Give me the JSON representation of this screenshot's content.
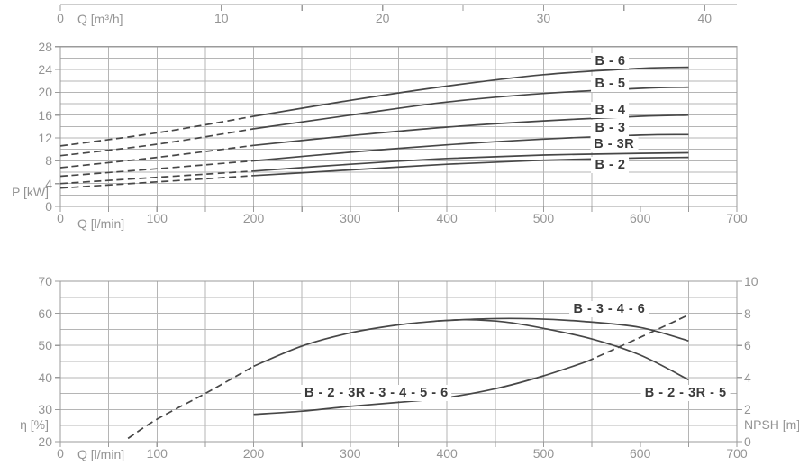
{
  "page": {
    "background": "#ffffff"
  },
  "colors": {
    "grid": "#b5b5b5",
    "border": "#9b9b9b",
    "axis": "#9b9b9b",
    "tick_label": "#949494",
    "curve": "#474747",
    "curve_label": "#3a3a3a"
  },
  "chart_data": [
    {
      "id": "power-chart",
      "type": "line",
      "x_axis_top": {
        "label": "Q [m³/h]",
        "labeled_ticks": [
          0,
          10,
          20,
          30,
          40
        ],
        "minor_step": 5,
        "liters_per_m3h": 16.6667
      },
      "xlabel": "Q [l/min]",
      "ylabel": "P [kW]",
      "xlim": [
        0,
        700
      ],
      "ylim": [
        0,
        28
      ],
      "x_tick_labels": [
        0,
        100,
        200,
        300,
        400,
        500,
        600,
        700
      ],
      "x_minor_step": 50,
      "y_tick_labels": [
        0,
        4,
        8,
        12,
        16,
        20,
        24,
        28
      ],
      "y_minor_step": 2,
      "grid": true,
      "dash_until": 200,
      "series": [
        {
          "name": "B - 6",
          "values": [
            [
              0,
              10.6
            ],
            [
              100,
              12.9
            ],
            [
              200,
              15.8
            ],
            [
              300,
              18.6
            ],
            [
              400,
              21.1
            ],
            [
              500,
              23.1
            ],
            [
              600,
              24.2
            ],
            [
              650,
              24.4
            ]
          ]
        },
        {
          "name": "B - 5",
          "values": [
            [
              0,
              8.9
            ],
            [
              100,
              10.9
            ],
            [
              200,
              13.6
            ],
            [
              300,
              16.0
            ],
            [
              400,
              18.3
            ],
            [
              500,
              19.8
            ],
            [
              600,
              20.7
            ],
            [
              650,
              20.9
            ]
          ]
        },
        {
          "name": "B - 4",
          "values": [
            [
              0,
              6.8
            ],
            [
              100,
              8.6
            ],
            [
              200,
              10.7
            ],
            [
              300,
              12.4
            ],
            [
              400,
              13.9
            ],
            [
              500,
              15.0
            ],
            [
              600,
              15.8
            ],
            [
              650,
              16.0
            ]
          ]
        },
        {
          "name": "B - 3",
          "values": [
            [
              0,
              5.3
            ],
            [
              100,
              6.6
            ],
            [
              200,
              8.0
            ],
            [
              300,
              9.5
            ],
            [
              400,
              10.8
            ],
            [
              500,
              11.8
            ],
            [
              600,
              12.5
            ],
            [
              650,
              12.6
            ]
          ]
        },
        {
          "name": "B - 3R",
          "values": [
            [
              0,
              4.0
            ],
            [
              100,
              5.1
            ],
            [
              200,
              6.2
            ],
            [
              300,
              7.4
            ],
            [
              400,
              8.4
            ],
            [
              500,
              9.0
            ],
            [
              600,
              9.3
            ],
            [
              650,
              9.4
            ]
          ]
        },
        {
          "name": "B - 2",
          "values": [
            [
              0,
              3.2
            ],
            [
              100,
              4.3
            ],
            [
              200,
              5.4
            ],
            [
              300,
              6.4
            ],
            [
              400,
              7.4
            ],
            [
              500,
              8.1
            ],
            [
              600,
              8.5
            ],
            [
              650,
              8.6
            ]
          ]
        }
      ],
      "curve_labels": [
        {
          "text": "B - 6",
          "q": 569,
          "v": 25.4
        },
        {
          "text": "B - 5",
          "q": 569,
          "v": 21.5
        },
        {
          "text": "B - 4",
          "q": 569,
          "v": 16.9
        },
        {
          "text": "B - 3",
          "q": 569,
          "v": 13.7
        },
        {
          "text": "B - 3R",
          "q": 573,
          "v": 10.9
        },
        {
          "text": "B - 2",
          "q": 569,
          "v": 7.3
        }
      ]
    },
    {
      "id": "efficiency-npsh-chart",
      "type": "line",
      "xlabel": "Q [l/min]",
      "ylabel_left": "η [%]",
      "ylabel_right": "NPSH [m]",
      "xlim": [
        0,
        700
      ],
      "ylim_left": [
        20,
        70
      ],
      "ylim_right": [
        0,
        10
      ],
      "x_tick_labels": [
        0,
        100,
        200,
        300,
        400,
        500,
        600,
        700
      ],
      "x_minor_step": 50,
      "y_left_tick_labels": [
        20,
        30,
        40,
        50,
        60,
        70
      ],
      "y_left_minor_step": 5,
      "y_right_tick_labels": [
        0,
        2,
        4,
        6,
        8,
        10
      ],
      "y_right_tick_step": 2,
      "grid": true,
      "series": [
        {
          "name": "eta rise extrapolated",
          "scale": "left",
          "style": "dashed",
          "values": [
            [
              70,
              21
            ],
            [
              100,
              27
            ],
            [
              150,
              35
            ],
            [
              200,
              43.5
            ]
          ]
        },
        {
          "name": "eta rise common",
          "scale": "left",
          "style": "solid",
          "values": [
            [
              200,
              43.5
            ],
            [
              250,
              49.8
            ],
            [
              300,
              53.9
            ],
            [
              350,
              56.4
            ],
            [
              390,
              57.6
            ]
          ]
        },
        {
          "name": "eta B - 3 - 4 - 6",
          "scale": "left",
          "style": "solid",
          "values": [
            [
              390,
              57.6
            ],
            [
              440,
              58.3
            ],
            [
              490,
              58.3
            ],
            [
              540,
              57.5
            ],
            [
              600,
              55.6
            ],
            [
              650,
              51.4
            ]
          ]
        },
        {
          "name": "eta B - 2 - 3R - 5",
          "scale": "left",
          "style": "solid",
          "values": [
            [
              390,
              57.6
            ],
            [
              420,
              58.0
            ],
            [
              460,
              57.3
            ],
            [
              500,
              55.3
            ],
            [
              550,
              52.0
            ],
            [
              600,
              47.0
            ],
            [
              650,
              39.3
            ]
          ]
        },
        {
          "name": "npsh B - 2 - 3R - 3 - 4 - 5 - 6",
          "scale": "right",
          "style": "solid",
          "values": [
            [
              200,
              1.7
            ],
            [
              250,
              1.9
            ],
            [
              300,
              2.2
            ],
            [
              350,
              2.45
            ],
            [
              400,
              2.75
            ],
            [
              450,
              3.3
            ],
            [
              500,
              4.1
            ],
            [
              545,
              5.0
            ]
          ]
        },
        {
          "name": "npsh extrapolated",
          "scale": "right",
          "style": "dashed",
          "values": [
            [
              545,
              5.0
            ],
            [
              600,
              6.5
            ],
            [
              650,
              7.9
            ]
          ]
        }
      ],
      "curve_labels": [
        {
          "text": "B - 3 - 4 - 6",
          "q": 568,
          "v": 61.3
        },
        {
          "text": "B - 2 - 3R - 3 - 4 - 5 - 6",
          "q": 327,
          "v": 35.2
        },
        {
          "text": "B - 2 - 3R - 5",
          "q": 647,
          "v": 35.2
        }
      ]
    }
  ]
}
